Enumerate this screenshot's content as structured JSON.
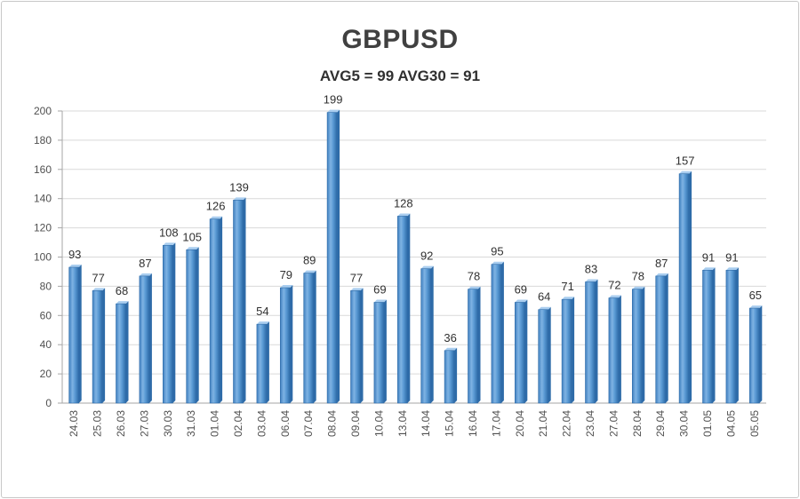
{
  "chart_data": {
    "type": "bar",
    "title": "GBPUSD",
    "subtitle": "AVG5 = 99 AVG30 = 91",
    "categories": [
      "24.03",
      "25.03",
      "26.03",
      "27.03",
      "30.03",
      "31.03",
      "01.04",
      "02.04",
      "03.04",
      "06.04",
      "07.04",
      "08.04",
      "09.04",
      "10.04",
      "13.04",
      "14.04",
      "15.04",
      "16.04",
      "17.04",
      "20.04",
      "21.04",
      "22.04",
      "23.04",
      "27.04",
      "28.04",
      "29.04",
      "30.04",
      "01.05",
      "04.05",
      "05.05"
    ],
    "values": [
      93,
      77,
      68,
      87,
      108,
      105,
      126,
      139,
      54,
      79,
      89,
      199,
      77,
      69,
      128,
      92,
      36,
      78,
      95,
      69,
      64,
      71,
      83,
      72,
      78,
      87,
      157,
      91,
      91,
      65
    ],
    "yticks": [
      0,
      20,
      40,
      60,
      80,
      100,
      120,
      140,
      160,
      180,
      200
    ],
    "ylim": [
      0,
      200
    ],
    "grid": true,
    "legend": "none",
    "colors": {
      "bar": "#5b9bd5",
      "bar_dark": "#2e6ba8",
      "bar_light": "#a9cdef",
      "grid": "#d9d9d9"
    }
  }
}
